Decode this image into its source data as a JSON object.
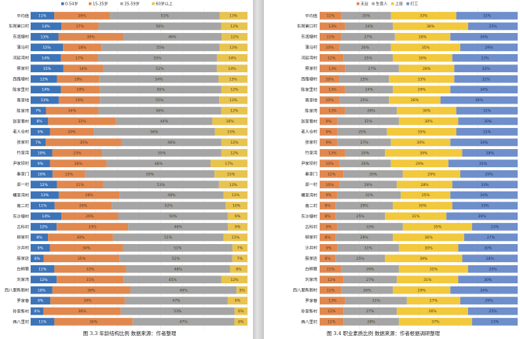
{
  "chart_data": [
    {
      "type": "bar",
      "stacked": "percent",
      "orientation": "horizontal",
      "caption": "图 3.3 年龄结构比例   数据来源：作者整理",
      "legend_position": "top",
      "series": [
        {
          "name": "0-54岁",
          "color": "#3d74b8"
        },
        {
          "name": "15-35岁",
          "color": "#e1884f"
        },
        {
          "name": "35-59岁",
          "color": "#a5a5a5"
        },
        {
          "name": "60岁以上",
          "color": "#e8c34e"
        }
      ],
      "categories": [
        "平均值",
        "东岗第口村",
        "东润塘村",
        "蒲马村",
        "河延湾村",
        "照家村",
        "西路塘村",
        "陈家里村",
        "南家地",
        "陈家湾",
        "张家巷村",
        "老人仓村",
        "张家村",
        "竹家湾",
        "尹家坝村",
        "秦家门",
        "郑一村",
        "桶家湾村",
        "南二村",
        "东沙塘村",
        "古科村",
        "柳家村",
        "沙井村",
        "殷家店",
        "白桐巷",
        "刘家湾",
        "西八里新厕村",
        "罗家巷",
        "孙家新村",
        "西八里村"
      ],
      "values": [
        [
          11,
          26,
          51,
          13
        ],
        [
          14,
          17,
          56,
          12
        ],
        [
          13,
          30,
          46,
          12
        ],
        [
          15,
          18,
          55,
          13
        ],
        [
          14,
          17,
          55,
          14
        ],
        [
          15,
          18,
          52,
          14
        ],
        [
          12,
          19,
          54,
          13
        ],
        [
          14,
          18,
          56,
          12
        ],
        [
          13,
          19,
          55,
          13
        ],
        [
          7,
          24,
          56,
          12
        ],
        [
          8,
          31,
          44,
          16
        ],
        [
          9,
          20,
          56,
          15
        ],
        [
          7,
          35,
          46,
          12
        ],
        [
          10,
          23,
          55,
          12
        ],
        [
          9,
          26,
          48,
          17
        ],
        [
          10,
          15,
          59,
          15
        ],
        [
          12,
          21,
          53,
          13
        ],
        [
          13,
          28,
          48,
          11
        ],
        [
          11,
          26,
          52,
          10
        ],
        [
          14,
          26,
          50,
          9
        ],
        [
          12,
          33,
          46,
          9
        ],
        [
          8,
          30,
          51,
          11
        ],
        [
          9,
          34,
          51,
          7
        ],
        [
          6,
          35,
          52,
          7
        ],
        [
          11,
          33,
          48,
          8
        ],
        [
          12,
          31,
          45,
          12
        ],
        [
          10,
          36,
          49,
          5
        ],
        [
          9,
          34,
          47,
          9
        ],
        [
          6,
          36,
          53,
          6
        ],
        [
          11,
          36,
          47,
          6
        ]
      ]
    },
    {
      "type": "bar",
      "stacked": "percent",
      "orientation": "horizontal",
      "caption": "图 3.4 职业素质比例   数据来源：作者根据调研整理",
      "legend_position": "top",
      "series": [
        {
          "name": "无业",
          "color": "#e1884f"
        },
        {
          "name": "生意人",
          "color": "#a5a5a5"
        },
        {
          "name": "上班",
          "color": "#f2c83c"
        },
        {
          "name": "打工",
          "color": "#6e8fcb"
        }
      ],
      "categories": [
        "平均值",
        "东岗第口村",
        "东润塘村",
        "蒲马村",
        "河延湾村",
        "照家村",
        "西路塘村",
        "陈家里村",
        "南家地",
        "陈家湾",
        "张家巷村",
        "老人仓村",
        "张家村",
        "竹家湾",
        "尹家坝村",
        "秦家门",
        "郑一村",
        "桶家湾村",
        "南二村",
        "东沙塘村",
        "古科村",
        "柳家村",
        "沙井村",
        "殷家店",
        "白桐巷",
        "刘家湾",
        "西八里新厕村",
        "罗家巷",
        "孙家新村",
        "西八里村"
      ],
      "values": [
        [
          11,
          25,
          33,
          31
        ],
        [
          13,
          24,
          38,
          25
        ],
        [
          11,
          27,
          28,
          34
        ],
        [
          10,
          26,
          35,
          29
        ],
        [
          12,
          25,
          30,
          33
        ],
        [
          13,
          27,
          28,
          32
        ],
        [
          10,
          25,
          33,
          32
        ],
        [
          13,
          24,
          29,
          34
        ],
        [
          10,
          25,
          26,
          39
        ],
        [
          13,
          26,
          30,
          31
        ],
        [
          9,
          31,
          30,
          30
        ],
        [
          9,
          25,
          35,
          31
        ],
        [
          9,
          27,
          30,
          34
        ],
        [
          13,
          20,
          39,
          28
        ],
        [
          10,
          26,
          29,
          35
        ],
        [
          12,
          30,
          29,
          29
        ],
        [
          10,
          29,
          28,
          33
        ],
        [
          9,
          32,
          25,
          34
        ],
        [
          8,
          29,
          30,
          33
        ],
        [
          8,
          25,
          31,
          36
        ],
        [
          9,
          33,
          35,
          23
        ],
        [
          8,
          29,
          36,
          27
        ],
        [
          9,
          31,
          30,
          30
        ],
        [
          8,
          25,
          39,
          28
        ],
        [
          11,
          29,
          35,
          25
        ],
        [
          12,
          27,
          31,
          30
        ],
        [
          11,
          26,
          29,
          34
        ],
        [
          13,
          31,
          27,
          29
        ],
        [
          12,
          27,
          36,
          25
        ],
        [
          12,
          28,
          37,
          23
        ]
      ]
    }
  ]
}
